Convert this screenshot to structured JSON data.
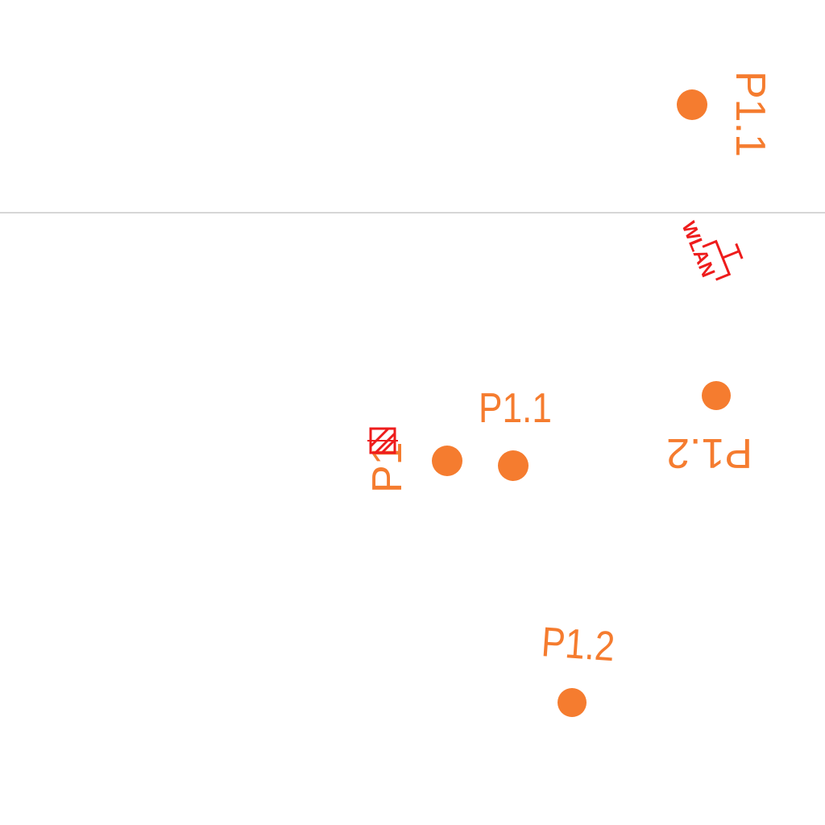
{
  "colors": {
    "point": "#f57c2f",
    "label": "#f57c2f",
    "symbol": "#ee1c1c",
    "divider": "#c8c8c8",
    "background": "#ffffff"
  },
  "labels": {
    "p11_top": "P1.1",
    "p11_mid": "P1.1",
    "p12_mid": "P1.2",
    "p12_bottom": "P1.2",
    "p1_partial": "P1",
    "wlan": "WLAN"
  },
  "icons": {
    "wlan_outlet": "wlan-outlet-symbol",
    "hatched_box": "hatched-junction-box-symbol"
  }
}
